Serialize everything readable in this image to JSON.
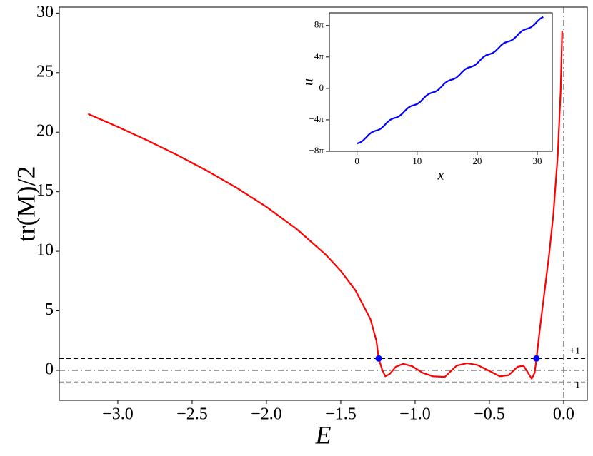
{
  "chart_data": [
    {
      "type": "line",
      "xlabel": "E",
      "ylabel": "tr(M)/2",
      "xlim": [
        -3.394,
        0.159
      ],
      "ylim": [
        -2.52,
        30.5
      ],
      "xticks": [
        {
          "value": -3.0,
          "label": "−3.0"
        },
        {
          "value": -2.5,
          "label": "−2.5"
        },
        {
          "value": -2.0,
          "label": "−2.0"
        },
        {
          "value": -1.5,
          "label": "−1.5"
        },
        {
          "value": -1.0,
          "label": "−1.0"
        },
        {
          "value": -0.5,
          "label": "−0.5"
        },
        {
          "value": 0.0,
          "label": "0.0"
        }
      ],
      "yticks": [
        0,
        5,
        10,
        15,
        20,
        25,
        30
      ],
      "series": [
        {
          "color": "#ff0000",
          "x": [
            -3.2,
            -3.0,
            -2.8,
            -2.6,
            -2.4,
            -2.2,
            -2.0,
            -1.8,
            -1.6,
            -1.5,
            -1.4,
            -1.3,
            -1.26,
            -1.245,
            -1.22,
            -1.2,
            -1.17,
            -1.13,
            -1.08,
            -1.02,
            -0.95,
            -0.88,
            -0.8,
            -0.72,
            -0.65,
            -0.58,
            -0.5,
            -0.43,
            -0.37,
            -0.31,
            -0.27,
            -0.24,
            -0.215,
            -0.195,
            -0.183,
            -0.16,
            -0.13,
            -0.1,
            -0.07,
            -0.04,
            -0.02,
            -0.01
          ],
          "values": [
            21.53,
            20.45,
            19.3,
            18.08,
            16.76,
            15.33,
            13.73,
            11.9,
            9.7,
            8.35,
            6.69,
            4.29,
            2.47,
            1.0,
            0.0,
            -0.5,
            -0.3,
            0.3,
            0.55,
            0.35,
            -0.2,
            -0.5,
            -0.55,
            0.4,
            0.6,
            0.45,
            -0.05,
            -0.5,
            -0.4,
            0.3,
            0.4,
            -0.2,
            -0.7,
            -0.2,
            1.0,
            3.5,
            6.5,
            9.5,
            13,
            18,
            23.5,
            28.5
          ]
        },
        {
          "color": "#0000ff",
          "marker": true,
          "x": [
            -1.245,
            -0.183
          ],
          "values": [
            1,
            1
          ]
        }
      ],
      "hlines": [
        {
          "y": 1,
          "label": "+1",
          "style": "dashed",
          "color": "#000000"
        },
        {
          "y": -1,
          "label": "−1",
          "style": "dashed",
          "color": "#000000"
        },
        {
          "y": 0,
          "style": "dashdot",
          "color": "#808080"
        }
      ],
      "vlines": [
        {
          "x": 0,
          "style": "dashdot",
          "color": "#808080"
        }
      ]
    },
    {
      "type": "line",
      "xlabel": "x",
      "ylabel": "u",
      "xlim": [
        -4.6,
        32.5
      ],
      "ylim": [
        -25.133,
        30.2
      ],
      "xticks": [
        0,
        10,
        20,
        30
      ],
      "yticks": [
        {
          "value": -25.133,
          "label": "−8π"
        },
        {
          "value": -12.566,
          "label": "−4π"
        },
        0,
        {
          "value": 12.566,
          "label": "4π"
        },
        {
          "value": 25.133,
          "label": "8π"
        }
      ],
      "series": [
        {
          "color": "#0000ff",
          "x": [
            0,
            0.5,
            1,
            1.5,
            2,
            2.5,
            3,
            3.5,
            4,
            4.5,
            5,
            5.5,
            6,
            6.5,
            7,
            7.5,
            8,
            8.5,
            9,
            9.5,
            10,
            10.5,
            11,
            11.5,
            12,
            12.5,
            13,
            13.5,
            14,
            14.5,
            15,
            15.5,
            16,
            16.5,
            17,
            17.5,
            18,
            18.5,
            19,
            19.5,
            20,
            20.5,
            21,
            21.5,
            22,
            22.5,
            23,
            23.5,
            24,
            24.5,
            25,
            25.5,
            26,
            26.5,
            27,
            27.5,
            28,
            28.5,
            29,
            29.5,
            30,
            30.5,
            31
          ],
          "values": [
            -22,
            -21.61,
            -20.83,
            -19.64,
            -18.38,
            -17.47,
            -17.0,
            -16.66,
            -16.01,
            -14.92,
            -13.63,
            -12.59,
            -12.01,
            -11.68,
            -11.16,
            -10.18,
            -8.9,
            -7.75,
            -7.04,
            -6.69,
            -6.26,
            -5.41,
            -4.18,
            -2.95,
            -2.11,
            -1.68,
            -1.32,
            -0.61,
            0.54,
            1.82,
            2.79,
            3.31,
            3.64,
            4.23,
            5.28,
            6.56,
            7.66,
            8.29,
            8.63,
            9.11,
            10.03,
            11.29,
            12.48,
            13.25,
            13.63,
            14.02,
            14.81,
            16.01,
            17.26,
            18.17,
            18.63,
            18.97,
            19.63,
            20.73,
            22.02,
            23.05,
            23.62,
            23.95,
            24.48,
            25.47,
            26.75,
            27.89,
            28.59
          ]
        }
      ]
    }
  ]
}
